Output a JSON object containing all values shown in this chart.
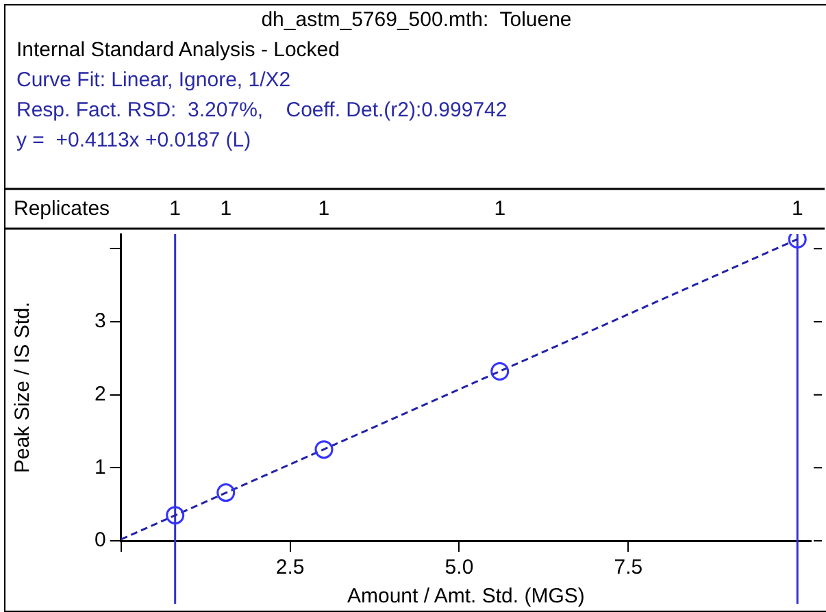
{
  "chart_data": {
    "type": "scatter",
    "title": "dh_astm_5769_500.mth:  Toluene",
    "subtitle": "Internal Standard Analysis - Locked",
    "xlabel": "Amount / Amt. Std. (MGS)",
    "ylabel": "Peak Size / IS Std.",
    "annotations": [
      "Curve Fit: Linear, Ignore, 1/X2",
      "Resp. Fact. RSD:  3.207%,    Coeff. Det.(r2):0.999742",
      "y =  +0.4113x +0.0187 (L)",
      "Replicates",
      "1",
      "1",
      "1",
      "1",
      "1"
    ],
    "series": [
      {
        "color": "#3333ff",
        "x": [
          0.8,
          1.55,
          3.0,
          5.6,
          10
        ],
        "values": [
          0.35,
          0.66,
          1.25,
          2.32,
          4.13
        ],
        "marker": "circle"
      },
      {
        "type": "line",
        "color": "#2222aa",
        "x": [
          0,
          10
        ],
        "values": [
          0.02,
          4.13
        ],
        "line_style": "dashed",
        "marker": "none"
      }
    ],
    "xlim": [
      0,
      10.2
    ],
    "ylim": [
      0,
      4.2
    ],
    "xticks": [
      {
        "value": 0,
        "label": null
      },
      {
        "value": 2.5,
        "label": "2.5"
      },
      {
        "value": 5,
        "label": "5.0"
      },
      {
        "value": 7.5,
        "label": "7.5"
      },
      {
        "value": 10,
        "label": null
      }
    ],
    "yticks": [
      0,
      1,
      2,
      3,
      {
        "value": 4,
        "label": null
      }
    ],
    "ref_lines": [
      {
        "axis": "x",
        "value": 0.8,
        "color": "#3333cc"
      },
      {
        "axis": "x",
        "value": 10,
        "color": "#3333cc"
      }
    ]
  }
}
